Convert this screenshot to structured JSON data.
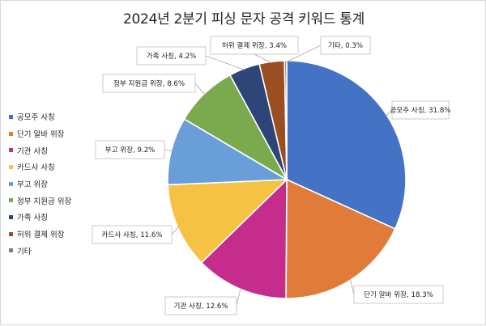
{
  "chart_data": {
    "type": "pie",
    "title": "2024년 2분기 피싱 문자 공격 키워드 통계",
    "legend_position": "left",
    "slices": [
      {
        "label": "공모주 사칭",
        "value": 31.8,
        "callout": "공모주 사칭, 31.8%",
        "color": "#4472C4"
      },
      {
        "label": "단기 알바 위장",
        "value": 18.3,
        "callout": "단기 알바 위장, 18.3%",
        "color": "#E07B39"
      },
      {
        "label": "기관 사칭",
        "value": 12.6,
        "callout": "기관 사칭, 12.6%",
        "color": "#C62C8C"
      },
      {
        "label": "카드사 사칭",
        "value": 11.6,
        "callout": "카드사 사칭, 11.6%",
        "color": "#F5C243"
      },
      {
        "label": "부고 위장",
        "value": 9.2,
        "callout": "부고 위장, 9.2%",
        "color": "#6A9ED8"
      },
      {
        "label": "정부 지원금 위장",
        "value": 8.6,
        "callout": "정부 지원금 위장, 8.6%",
        "color": "#7BAA4E"
      },
      {
        "label": "가족 사칭",
        "value": 4.2,
        "callout": "가족 사칭, 4.2%",
        "color": "#2E4677"
      },
      {
        "label": "허위 결제 위장",
        "value": 3.4,
        "callout": "허위 결제 위장, 3.4%",
        "color": "#9A4E22"
      },
      {
        "label": "기타",
        "value": 0.3,
        "callout": "기타, 0.3%",
        "color": "#7F7F7F"
      }
    ]
  }
}
